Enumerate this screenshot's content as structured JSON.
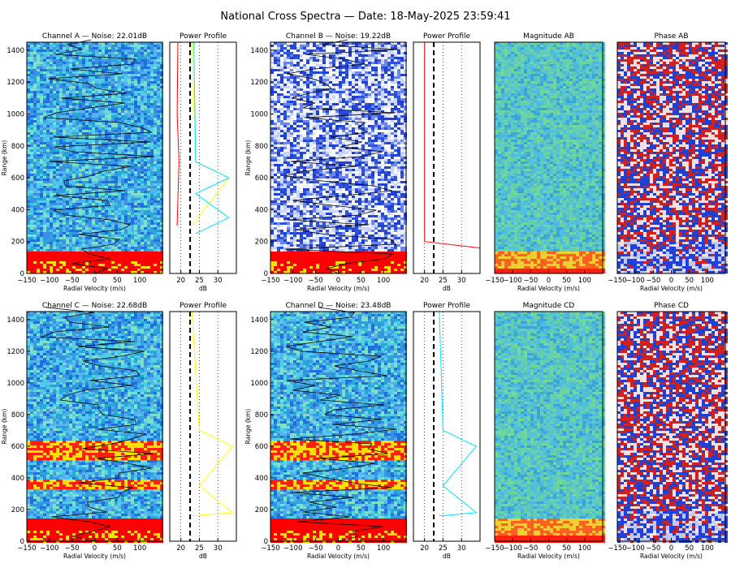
{
  "title": "National Cross Spectra — Date: 18-May-2025 23:59:41",
  "colors": {
    "red": "#ff0000",
    "yellow": "#ffff00",
    "cyan": "#00e5ff",
    "black": "#000000",
    "bg_blue": "#3a8fe0"
  },
  "chart_data": [
    {
      "id": "chA",
      "type": "heatmap",
      "title": "Channel A — Noise: 22.01dB",
      "xlabel": "Radial Velocity (m/s)",
      "ylabel": "Range (km)",
      "xlim": [
        -150,
        150
      ],
      "ylim": [
        0,
        1450
      ],
      "xticks": [
        "−150",
        "−100",
        "−50",
        "0",
        "50",
        "100"
      ],
      "yticks": [
        "0",
        "200",
        "400",
        "600",
        "800",
        "1000",
        "1200",
        "1400"
      ]
    },
    {
      "id": "ppA",
      "type": "line",
      "title": "Power Profile",
      "xlabel": "dB",
      "xlim": [
        17,
        35
      ],
      "ylim": [
        0,
        1450
      ],
      "xticks": [
        "20",
        "25",
        "30"
      ],
      "series": [
        {
          "color": "red",
          "values": [
            [
              19,
              300
            ],
            [
              19.5,
              700
            ],
            [
              19,
              1000
            ],
            [
              19.2,
              1450
            ]
          ]
        },
        {
          "color": "yellow",
          "values": [
            [
              23,
              300
            ],
            [
              33,
              600
            ],
            [
              24,
              700
            ],
            [
              23,
              1450
            ]
          ]
        },
        {
          "color": "cyan",
          "values": [
            [
              24,
              250
            ],
            [
              33,
              350
            ],
            [
              24,
              500
            ],
            [
              33,
              600
            ],
            [
              24,
              700
            ],
            [
              23.5,
              1450
            ]
          ]
        }
      ]
    },
    {
      "id": "chB",
      "type": "heatmap",
      "title": "Channel B — Noise: 19.22dB",
      "xlabel": "Radial Velocity (m/s)",
      "ylabel": "Range (km)",
      "xlim": [
        -150,
        150
      ],
      "ylim": [
        0,
        1450
      ],
      "xticks": [
        "−150",
        "−100",
        "−50",
        "0",
        "50",
        "100"
      ],
      "yticks": [
        "0",
        "200",
        "400",
        "600",
        "800",
        "1000",
        "1200",
        "1400"
      ]
    },
    {
      "id": "ppB",
      "type": "line",
      "title": "Power Profile",
      "xlabel": "dB",
      "xlim": [
        17,
        35
      ],
      "ylim": [
        0,
        1450
      ],
      "xticks": [
        "20",
        "25",
        "30"
      ],
      "series": [
        {
          "color": "red",
          "values": [
            [
              35,
              160
            ],
            [
              20,
              200
            ],
            [
              20,
              1450
            ]
          ]
        }
      ]
    },
    {
      "id": "magAB",
      "type": "heatmap",
      "title": "Magnitude AB",
      "xlabel": "Radial Velocity (m/s)",
      "xlim": [
        -150,
        150
      ],
      "ylim": [
        0,
        1450
      ],
      "xticks": [
        "−150",
        "−100",
        "−50",
        "0",
        "50",
        "100"
      ]
    },
    {
      "id": "phAB",
      "type": "heatmap",
      "title": "Phase AB",
      "xlabel": "Radial Velocity (m/s)",
      "xlim": [
        -150,
        150
      ],
      "ylim": [
        0,
        1450
      ],
      "xticks": [
        "−150",
        "−100",
        "−50",
        "0",
        "50",
        "100"
      ]
    },
    {
      "id": "chC",
      "type": "heatmap",
      "title": "Channel C — Noise: 22.68dB",
      "xlabel": "Radial Velocity (m/s)",
      "ylabel": "Range (km)",
      "xlim": [
        -150,
        150
      ],
      "ylim": [
        0,
        1450
      ],
      "xticks": [
        "−150",
        "−100",
        "−50",
        "0",
        "50",
        "100"
      ],
      "yticks": [
        "0",
        "200",
        "400",
        "600",
        "800",
        "1000",
        "1200",
        "1400"
      ]
    },
    {
      "id": "ppC",
      "type": "line",
      "title": "Power Profile",
      "xlabel": "dB",
      "xlim": [
        17,
        35
      ],
      "ylim": [
        0,
        1450
      ],
      "xticks": [
        "20",
        "25",
        "30"
      ],
      "series": [
        {
          "color": "yellow",
          "values": [
            [
              23,
              160
            ],
            [
              34,
              180
            ],
            [
              25,
              350
            ],
            [
              34,
              600
            ],
            [
              25,
              700
            ],
            [
              23,
              1450
            ]
          ]
        }
      ]
    },
    {
      "id": "chD",
      "type": "heatmap",
      "title": "Channel D — Noise: 23.48dB",
      "xlabel": "Radial Velocity (m/s)",
      "ylabel": "Range (km)",
      "xlim": [
        -150,
        150
      ],
      "ylim": [
        0,
        1450
      ],
      "xticks": [
        "−150",
        "−100",
        "−50",
        "0",
        "50",
        "100"
      ],
      "yticks": [
        "0",
        "200",
        "400",
        "600",
        "800",
        "1000",
        "1200",
        "1400"
      ]
    },
    {
      "id": "ppD",
      "type": "line",
      "title": "Power Profile",
      "xlabel": "dB",
      "xlim": [
        17,
        35
      ],
      "ylim": [
        0,
        1450
      ],
      "xticks": [
        "20",
        "25",
        "30"
      ],
      "series": [
        {
          "color": "cyan",
          "values": [
            [
              24,
              160
            ],
            [
              34,
              180
            ],
            [
              25,
              350
            ],
            [
              34,
              600
            ],
            [
              25,
              700
            ],
            [
              24,
              1450
            ]
          ]
        }
      ]
    },
    {
      "id": "magCD",
      "type": "heatmap",
      "title": "Magnitude CD",
      "xlabel": "Radial Velocity (m/s)",
      "xlim": [
        -150,
        150
      ],
      "ylim": [
        0,
        1450
      ],
      "xticks": [
        "−150",
        "−100",
        "−50",
        "0",
        "50",
        "100"
      ]
    },
    {
      "id": "phCD",
      "type": "heatmap",
      "title": "Phase CD",
      "xlabel": "Radial Velocity (m/s)",
      "xlim": [
        -150,
        150
      ],
      "ylim": [
        0,
        1450
      ],
      "xticks": [
        "−150",
        "−100",
        "−50",
        "0",
        "50",
        "100"
      ]
    }
  ]
}
